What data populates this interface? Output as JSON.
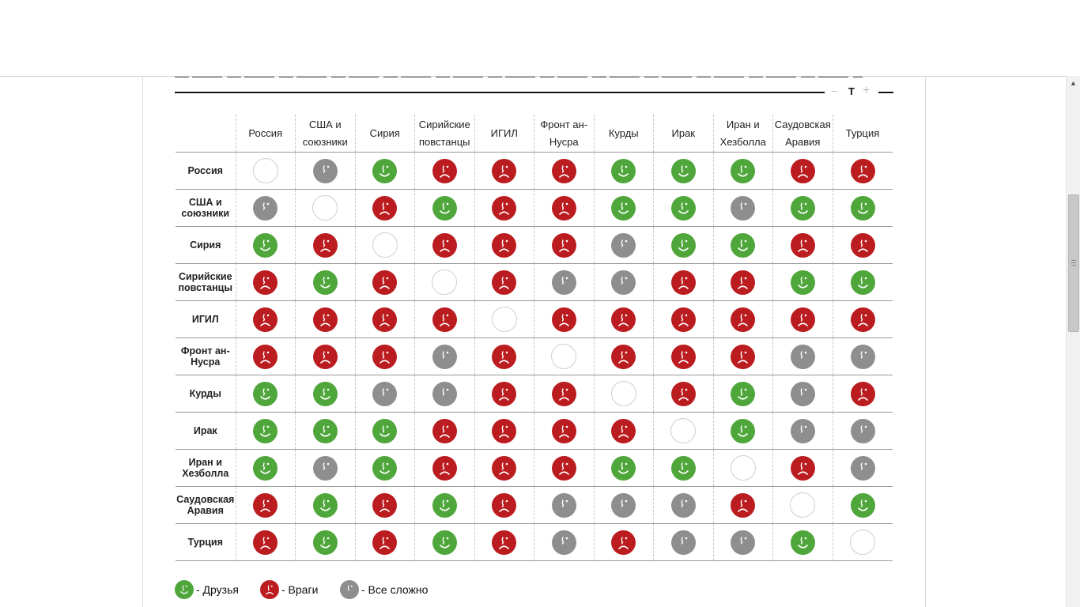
{
  "controls": {
    "minus": "−",
    "font": "T",
    "plus": "+"
  },
  "columns": [
    "Россия",
    "США и союзники",
    "Сирия",
    "Сирийские повстанцы",
    "ИГИЛ",
    "Фронт ан-Нусра",
    "Курды",
    "Ирак",
    "Иран и Хезболла",
    "Саудовская Аравия",
    "Турция"
  ],
  "rows": [
    {
      "label": "Россия",
      "cells": [
        "self",
        "complex",
        "friend",
        "enemy",
        "enemy",
        "enemy",
        "friend",
        "friend",
        "friend",
        "enemy",
        "enemy"
      ]
    },
    {
      "label": "США и союзники",
      "cells": [
        "complex",
        "self",
        "enemy",
        "friend",
        "enemy",
        "enemy",
        "friend",
        "friend",
        "complex",
        "friend",
        "friend"
      ]
    },
    {
      "label": "Сирия",
      "cells": [
        "friend",
        "enemy",
        "self",
        "enemy",
        "enemy",
        "enemy",
        "complex",
        "friend",
        "friend",
        "enemy",
        "enemy"
      ]
    },
    {
      "label": "Сирийские повстанцы",
      "cells": [
        "enemy",
        "friend",
        "enemy",
        "self",
        "enemy",
        "complex",
        "complex",
        "enemy",
        "enemy",
        "friend",
        "friend"
      ]
    },
    {
      "label": "ИГИЛ",
      "cells": [
        "enemy",
        "enemy",
        "enemy",
        "enemy",
        "self",
        "enemy",
        "enemy",
        "enemy",
        "enemy",
        "enemy",
        "enemy"
      ]
    },
    {
      "label": "Фронт ан-Нусра",
      "cells": [
        "enemy",
        "enemy",
        "enemy",
        "complex",
        "enemy",
        "self",
        "enemy",
        "enemy",
        "enemy",
        "complex",
        "complex"
      ]
    },
    {
      "label": "Курды",
      "cells": [
        "friend",
        "friend",
        "complex",
        "complex",
        "enemy",
        "enemy",
        "self",
        "enemy",
        "friend",
        "complex",
        "enemy"
      ]
    },
    {
      "label": "Ирак",
      "cells": [
        "friend",
        "friend",
        "friend",
        "enemy",
        "enemy",
        "enemy",
        "enemy",
        "self",
        "friend",
        "complex",
        "complex"
      ]
    },
    {
      "label": "Иран и Хезболла",
      "cells": [
        "friend",
        "complex",
        "friend",
        "enemy",
        "enemy",
        "enemy",
        "friend",
        "friend",
        "self",
        "enemy",
        "complex"
      ]
    },
    {
      "label": "Саудовская Аравия",
      "cells": [
        "enemy",
        "friend",
        "enemy",
        "friend",
        "enemy",
        "complex",
        "complex",
        "complex",
        "enemy",
        "self",
        "friend"
      ]
    },
    {
      "label": "Турция",
      "cells": [
        "enemy",
        "friend",
        "enemy",
        "friend",
        "enemy",
        "complex",
        "enemy",
        "complex",
        "complex",
        "friend",
        "self"
      ]
    }
  ],
  "legend": [
    {
      "type": "friend",
      "label": "- Друзья"
    },
    {
      "type": "enemy",
      "label": "- Враги"
    },
    {
      "type": "complex",
      "label": "- Все сложно"
    }
  ],
  "colors": {
    "friend": "#4fa63b",
    "enemy": "#bb1c1f",
    "complex": "#8e8e8e"
  },
  "icons": {
    "friend": "smiling-face-icon",
    "enemy": "sad-face-icon",
    "complex": "neutral-face-icon",
    "self": "empty-circle-icon"
  }
}
